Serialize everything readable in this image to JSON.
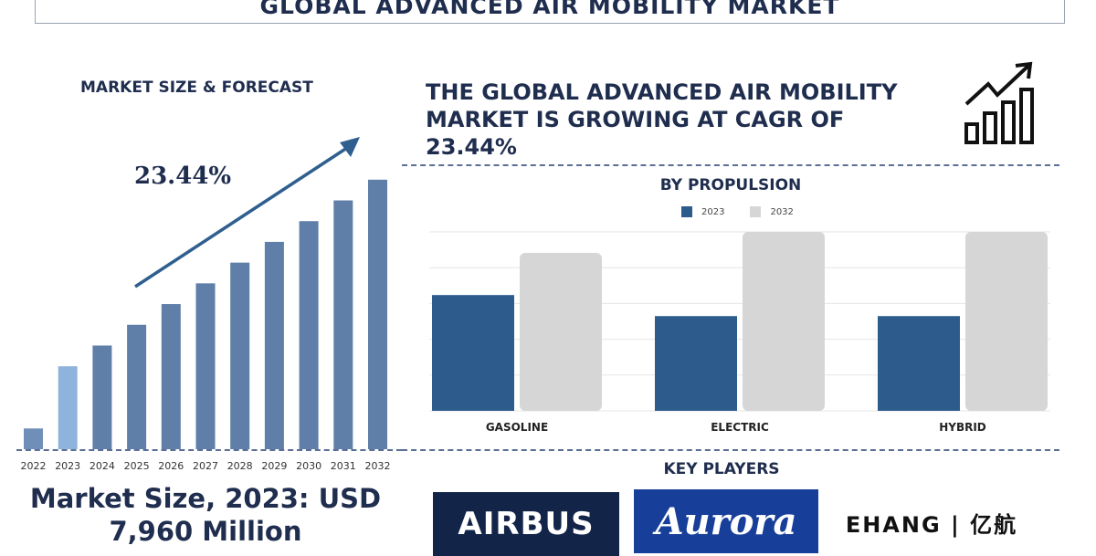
{
  "title": "GLOBAL ADVANCED AIR MOBILITY MARKET",
  "left_panel": {
    "heading": "MARKET SIZE & FORECAST",
    "cagr": "23.44%",
    "market_size_line1": "Market Size, 2023: USD",
    "market_size_line2": "7,960 Million"
  },
  "headline": "THE GLOBAL ADVANCED AIR MOBILITY MARKET IS GROWING AT CAGR OF 23.44%",
  "propulsion_heading": "BY PROPULSION",
  "legend": [
    {
      "label": "2023",
      "color": "#2c5b8c"
    },
    {
      "label": "2032",
      "color": "#d6d6d6"
    }
  ],
  "key_players": {
    "heading": "KEY PLAYERS",
    "logos": [
      {
        "text": "AIRBUS",
        "bg": "#132449"
      },
      {
        "text": "Aurora",
        "bg": "#173f99"
      },
      {
        "text": "EHANG | 亿航",
        "bg": "#ffffff"
      }
    ]
  },
  "icons": [
    "growth-chart-icon"
  ],
  "chart_data": [
    {
      "type": "bar",
      "title": "MARKET SIZE & FORECAST",
      "categories": [
        "2022",
        "2023",
        "2024",
        "2025",
        "2026",
        "2027",
        "2028",
        "2029",
        "2030",
        "2031",
        "2032"
      ],
      "values": [
        1,
        4,
        5,
        6,
        7,
        8,
        9,
        10,
        11,
        12,
        13
      ],
      "highlight_colors": [
        "#6f8fb8",
        "#8fb4dc",
        "#5f7ea8",
        "#5f7ea8",
        "#5f7ea8",
        "#5f7ea8",
        "#5f7ea8",
        "#5f7ea8",
        "#5f7ea8",
        "#5f7ea8",
        "#5f7ea8"
      ],
      "ylim": [
        0,
        13.3
      ],
      "annotation": "23.44%",
      "grid": false
    },
    {
      "type": "bar",
      "title": "BY PROPULSION",
      "categories": [
        "GASOLINE",
        "ELECTRIC",
        "HYBRID"
      ],
      "series": [
        {
          "name": "2023",
          "values": [
            5.5,
            4.5,
            4.5
          ],
          "color": "#2c5b8c"
        },
        {
          "name": "2032",
          "values": [
            7.5,
            8.5,
            8.5
          ],
          "color": "#d6d6d6"
        }
      ],
      "ylim": [
        0,
        8.5
      ],
      "grid": true,
      "legend": "top-center"
    }
  ]
}
